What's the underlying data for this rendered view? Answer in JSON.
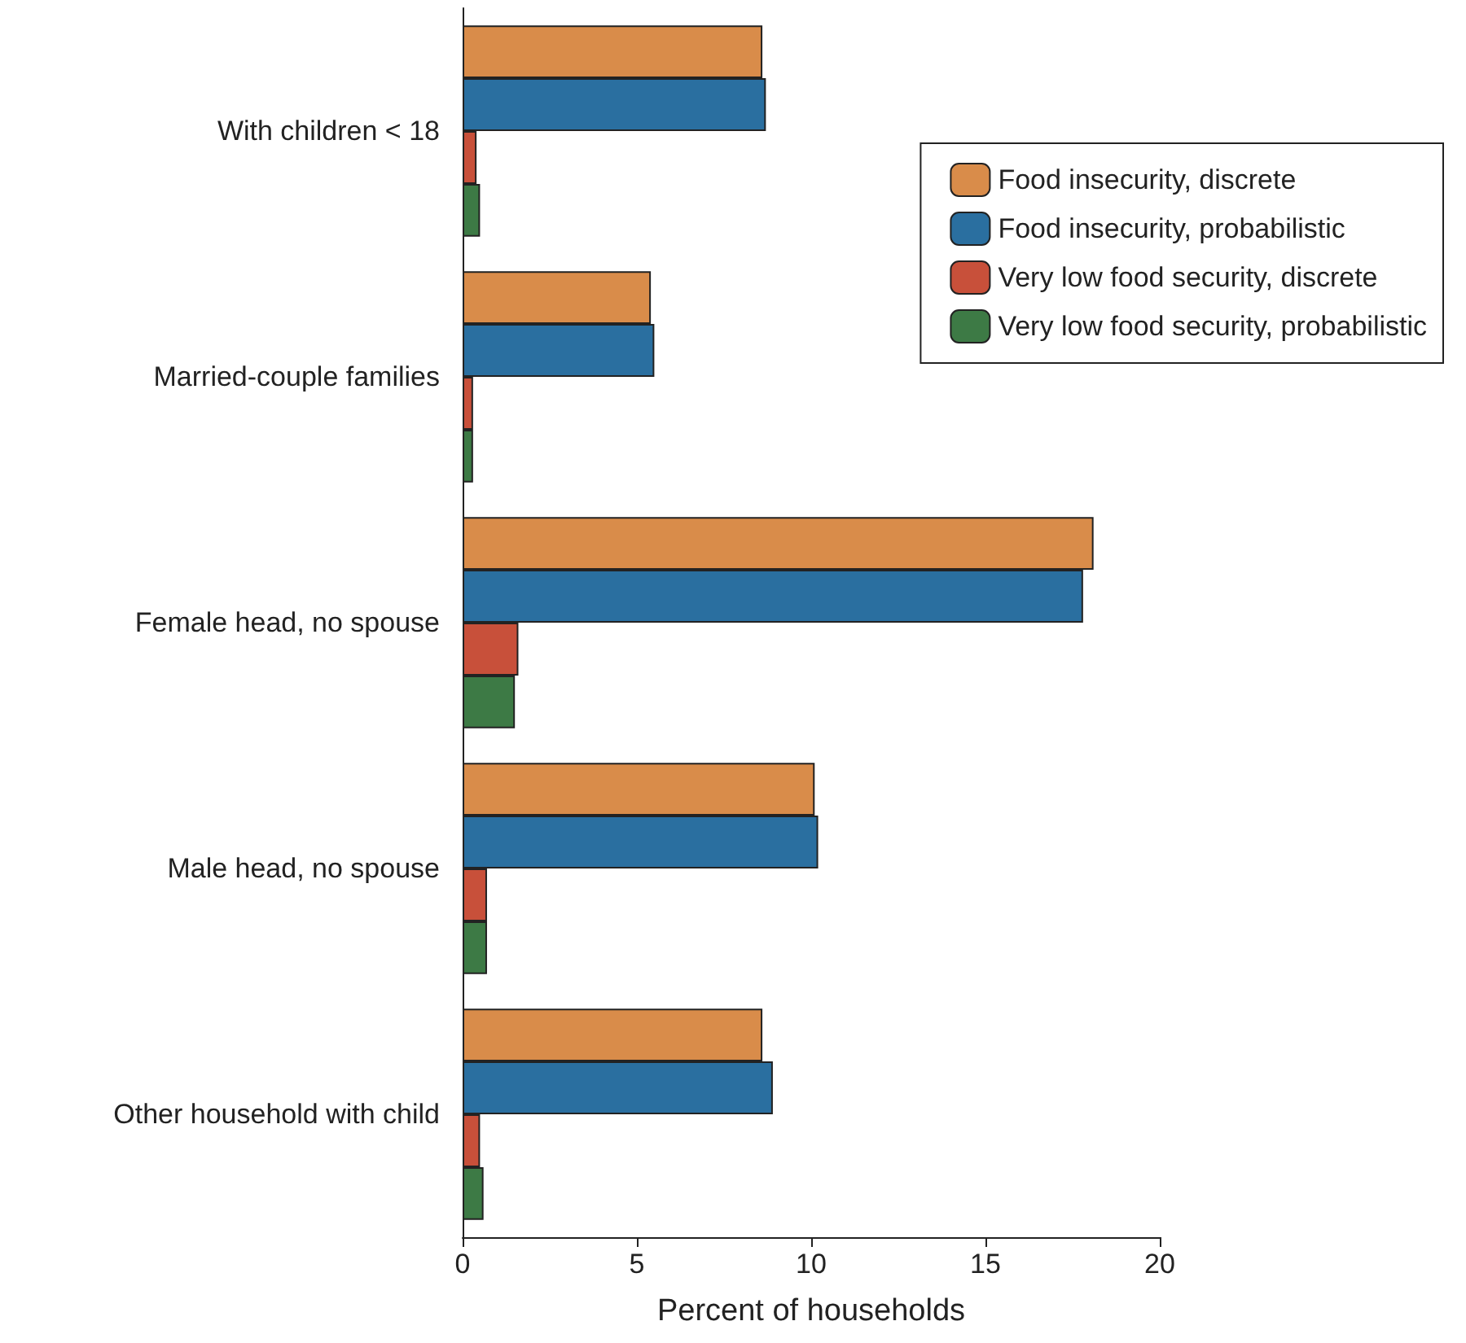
{
  "chart_data": {
    "type": "bar",
    "orientation": "horizontal",
    "xlabel": "Percent of households",
    "categories": [
      "With children < 18",
      "Married-couple families",
      "Female head, no spouse",
      "Male head, no spouse",
      "Other household with child"
    ],
    "series": [
      {
        "name": "Food insecurity, discrete",
        "color": "#d98c4a",
        "values": [
          8.6,
          5.4,
          18.1,
          10.1,
          8.6
        ]
      },
      {
        "name": "Food insecurity, probabilistic",
        "color": "#2a6fa0",
        "values": [
          8.7,
          5.5,
          17.8,
          10.2,
          8.9
        ]
      },
      {
        "name": "Very low food security, discrete",
        "color": "#c8503a",
        "values": [
          0.4,
          0.3,
          1.6,
          0.7,
          0.5
        ]
      },
      {
        "name": "Very low food security, probabilistic",
        "color": "#3d7a45",
        "values": [
          0.5,
          0.3,
          1.5,
          0.7,
          0.6
        ]
      }
    ],
    "xlim": [
      0,
      20
    ],
    "xticks": [
      0,
      5,
      10,
      15,
      20
    ],
    "grid": false,
    "legend": "top right"
  }
}
